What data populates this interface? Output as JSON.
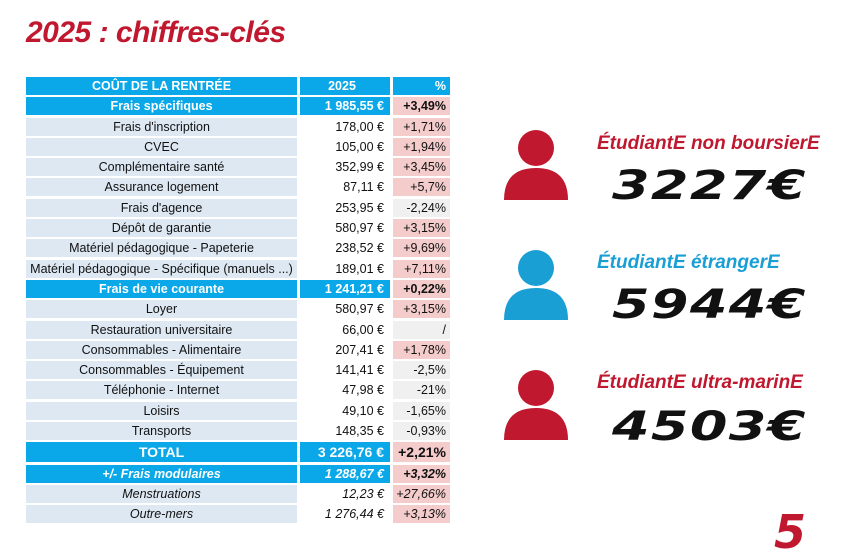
{
  "title": "2025 : chiffres-clés",
  "colors": {
    "red": "#c0182f",
    "blue": "#0aa8e8",
    "icon_blue": "#1a9fd4",
    "positive": "#f4cccc",
    "negative": "#f0f0f0"
  },
  "table": {
    "rows": [
      {
        "type": "head",
        "label": "COÛT DE LA RENTRÉE",
        "value": "2025",
        "pct": "%"
      },
      {
        "type": "section",
        "label": "Frais spécifiques",
        "value": "1 985,55 €",
        "pct": "+3,49%"
      },
      {
        "type": "item",
        "label": "Frais d'inscription",
        "value": "178,00 €",
        "pct": "+1,71%"
      },
      {
        "type": "item",
        "label": "CVEC",
        "value": "105,00 €",
        "pct": "+1,94%"
      },
      {
        "type": "item",
        "label": "Complémentaire santé",
        "value": "352,99 €",
        "pct": "+3,45%"
      },
      {
        "type": "item",
        "label": "Assurance logement",
        "value": "87,11 €",
        "pct": "+5,7%"
      },
      {
        "type": "item",
        "label": "Frais d'agence",
        "value": "253,95 €",
        "pct": "-2,24%"
      },
      {
        "type": "item",
        "label": "Dépôt de garantie",
        "value": "580,97 €",
        "pct": "+3,15%"
      },
      {
        "type": "item",
        "label": "Matériel pédagogique - Papeterie",
        "value": "238,52 €",
        "pct": "+9,69%"
      },
      {
        "type": "item",
        "label": "Matériel pédagogique - Spécifique (manuels ...)",
        "value": "189,01 €",
        "pct": "+7,11%"
      },
      {
        "type": "section",
        "label": "Frais de vie courante",
        "value": "1 241,21 €",
        "pct": "+0,22%"
      },
      {
        "type": "item",
        "label": "Loyer",
        "value": "580,97 €",
        "pct": "+3,15%"
      },
      {
        "type": "item",
        "label": "Restauration universitaire",
        "value": "66,00 €",
        "pct": "/"
      },
      {
        "type": "item",
        "label": "Consommables - Alimentaire",
        "value": "207,41 €",
        "pct": "+1,78%"
      },
      {
        "type": "item",
        "label": "Consommables - Équipement",
        "value": "141,41 €",
        "pct": "-2,5%"
      },
      {
        "type": "item",
        "label": "Téléphonie - Internet",
        "value": "47,98 €",
        "pct": "-21%"
      },
      {
        "type": "item",
        "label": "Loisirs",
        "value": "49,10 €",
        "pct": "-1,65%"
      },
      {
        "type": "item",
        "label": "Transports",
        "value": "148,35 €",
        "pct": "-0,93%"
      },
      {
        "type": "total",
        "label": "TOTAL",
        "value": "3 226,76 €",
        "pct": "+2,21%"
      },
      {
        "type": "modsec",
        "label": "+/- Frais modulaires",
        "value": "1 288,67 €",
        "pct": "+3,32%"
      },
      {
        "type": "moditem",
        "label": "Menstruations",
        "value": "12,23 €",
        "pct": "+27,66%"
      },
      {
        "type": "moditem",
        "label": "Outre-mers",
        "value": "1 276,44 €",
        "pct": "+3,13%"
      }
    ]
  },
  "profiles": [
    {
      "label": "ÉtudiantE non boursierE",
      "amount": "3227€",
      "icon": "person-icon",
      "color": "#c0182f"
    },
    {
      "label": "ÉtudiantE étrangerE",
      "amount": "5944€",
      "icon": "person-icon",
      "color": "#1a9fd4"
    },
    {
      "label": "ÉtudiantE ultra-marinE",
      "amount": "4503€",
      "icon": "person-icon",
      "color": "#c0182f"
    }
  ],
  "logo": "5"
}
